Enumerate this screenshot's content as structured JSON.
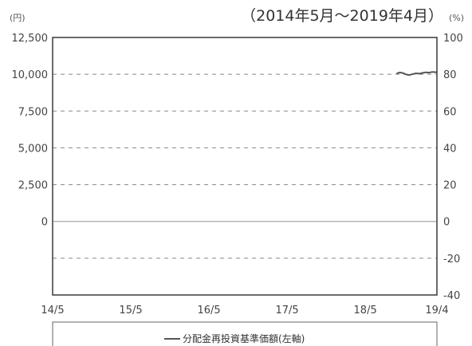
{
  "chart_data": {
    "type": "line",
    "period_label": "（2014年5月～2019年4月）",
    "left_unit": "(円)",
    "right_unit": "(%)",
    "left_axis": {
      "ylim": [
        -5000,
        12500
      ],
      "ticks": [
        "12,500",
        "10,000",
        "7,500",
        "5,000",
        "2,500",
        "0"
      ]
    },
    "right_axis": {
      "ylim": [
        -40,
        100
      ],
      "ticks": [
        "100",
        "80",
        "60",
        "40",
        "20",
        "0",
        "-20",
        "-40"
      ]
    },
    "x_ticks": [
      "14/5",
      "15/5",
      "16/5",
      "17/5",
      "18/5",
      "19/4"
    ],
    "x_tick_months": [
      0,
      12,
      24,
      36,
      48,
      59
    ],
    "grid": "dashed horizontal",
    "legend_position": "bottom",
    "series": [
      {
        "name": "分配金再投資基準価額(左軸)",
        "axis": "left",
        "color": "#555555",
        "x": [
          52.8,
          53.3,
          53.8,
          54.3,
          54.8,
          55.3,
          55.8,
          56.3,
          56.8,
          57.3,
          57.8,
          58.3,
          58.8,
          59
        ],
        "y": [
          10050,
          10120,
          10080,
          9980,
          9950,
          10020,
          10060,
          10040,
          10090,
          10130,
          10110,
          10160,
          10140,
          10150
        ]
      }
    ]
  }
}
